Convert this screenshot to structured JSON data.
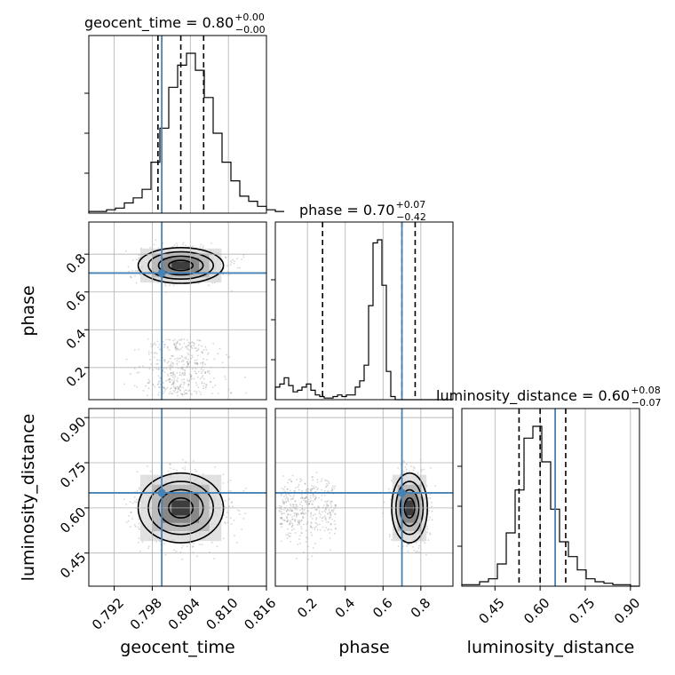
{
  "chart_data": {
    "type": "corner",
    "parameters": [
      "geocent_time",
      "phase",
      "luminosity_distance"
    ],
    "axis_labels": [
      "geocent_time",
      "phase",
      "luminosity_distance"
    ],
    "titles": [
      {
        "text": "geocent_time = 0.80",
        "plus": "+0.00",
        "minus": "−0.00"
      },
      {
        "text": "phase = 0.70",
        "plus": "+0.07",
        "minus": "−0.42"
      },
      {
        "text": "luminosity_distance = 0.60",
        "plus": "+0.08",
        "minus": "−0.07"
      }
    ],
    "ranges": [
      [
        0.788,
        0.816
      ],
      [
        0.03,
        0.97
      ],
      [
        0.34,
        0.93
      ]
    ],
    "ticks": [
      {
        "values": [
          0.792,
          0.798,
          0.804,
          0.81,
          0.816
        ],
        "labels": [
          "0.792",
          "0.798",
          "0.804",
          "0.810",
          "0.816"
        ]
      },
      {
        "values": [
          0.2,
          0.4,
          0.6,
          0.8
        ],
        "labels": [
          "0.2",
          "0.4",
          "0.6",
          "0.8"
        ]
      },
      {
        "values": [
          0.45,
          0.6,
          0.75,
          0.9
        ],
        "labels": [
          "0.45",
          "0.60",
          "0.75",
          "0.90"
        ]
      }
    ],
    "truths": [
      0.7995,
      0.7,
      0.65
    ],
    "quantiles": [
      [
        0.7989,
        0.8025,
        0.8061
      ],
      [
        0.28,
        0.7,
        0.77
      ],
      [
        0.53,
        0.6,
        0.685
      ]
    ],
    "histograms": [
      {
        "edges_start": 0.788,
        "bin_width": 0.0014,
        "counts": [
          1,
          1,
          2,
          3,
          6,
          9,
          14,
          30,
          50,
          74,
          87,
          94,
          84,
          68,
          47,
          30,
          19,
          10,
          7,
          4,
          2,
          1
        ]
      },
      {
        "edges_start": 0.03,
        "bin_width": 0.0235,
        "counts": [
          8,
          10,
          14,
          9,
          5,
          6,
          8,
          10,
          6,
          3,
          2,
          1,
          1,
          2,
          3,
          2,
          3,
          3,
          8,
          12,
          22,
          60,
          100,
          102,
          73,
          18,
          2,
          0,
          0,
          0,
          0,
          0,
          0,
          0,
          0,
          0,
          0,
          0,
          0,
          0
        ]
      },
      {
        "edges_start": 0.34,
        "bin_width": 0.0295,
        "counts": [
          1,
          1,
          3,
          5,
          15,
          36,
          65,
          100,
          108,
          84,
          52,
          30,
          20,
          11,
          5,
          3,
          2,
          1,
          1,
          0
        ]
      }
    ],
    "grid": true,
    "colors": {
      "truth": "#4682b4",
      "hist": "#000000",
      "grid": "#b0b0b0",
      "scatter": "#888888"
    }
  }
}
